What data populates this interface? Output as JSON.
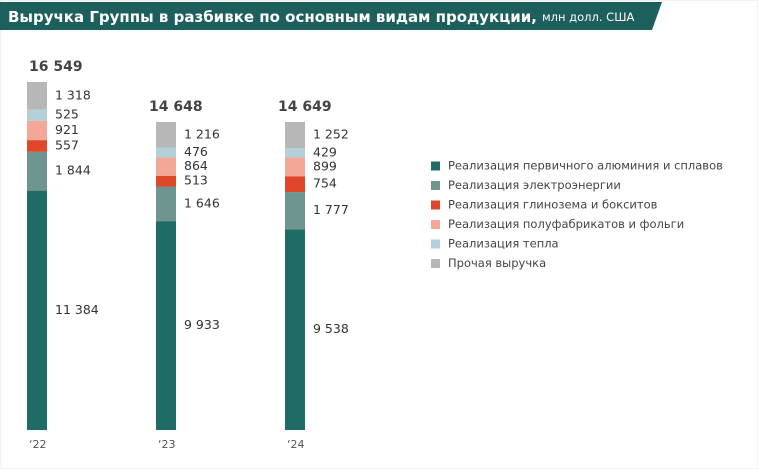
{
  "chart_data": {
    "type": "stacked_bar",
    "title": "Выручка Группы в разбивке по основным видам продукции,",
    "subtitle": "млн долл. США",
    "categories": [
      "‘22",
      "‘23",
      "‘24"
    ],
    "totals": [
      16549,
      14648,
      14649
    ],
    "total_labels": [
      "16 549",
      "14 648",
      "14 649"
    ],
    "series": [
      {
        "name": "Реализация первичного алюминия и сплавов",
        "color": "#1f6b66",
        "values": [
          11384,
          9933,
          9538
        ],
        "value_labels": [
          "11 384",
          "9 933",
          "9 538"
        ]
      },
      {
        "name": "Реализация электроэнергии",
        "color": "#6e958f",
        "values": [
          1844,
          1646,
          1777
        ],
        "value_labels": [
          "1 844",
          "1 646",
          "1 777"
        ]
      },
      {
        "name": "Реализация глинозема и бокситов",
        "color": "#e0472a",
        "values": [
          557,
          513,
          754
        ],
        "value_labels": [
          "557",
          "513",
          "754"
        ]
      },
      {
        "name": "Реализация полуфабрикатов и фольги",
        "color": "#f3a797",
        "values": [
          921,
          864,
          899
        ],
        "value_labels": [
          "921",
          "864",
          "899"
        ]
      },
      {
        "name": "Реализация тепла",
        "color": "#b3cfd9",
        "values": [
          525,
          476,
          429
        ],
        "value_labels": [
          "525",
          "476",
          "429"
        ]
      },
      {
        "name": "Прочая выручка",
        "color": "#b7b7b7",
        "values": [
          1318,
          1216,
          1252
        ],
        "value_labels": [
          "1 318",
          "1 216",
          "1 252"
        ]
      }
    ]
  }
}
